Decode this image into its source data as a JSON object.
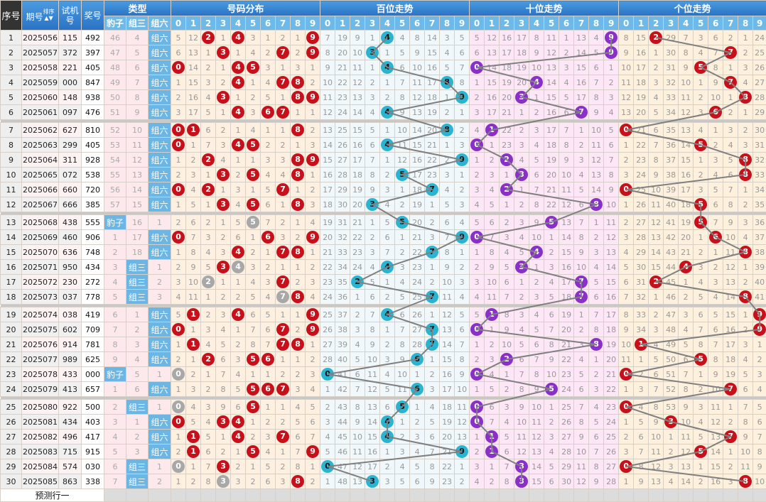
{
  "headers": {
    "seq": "序号",
    "issue": "期号",
    "sort_label": "排序",
    "trial": "试机号",
    "draw": "奖号",
    "type": "类型",
    "type_cols": [
      "豹子",
      "组三",
      "组六"
    ],
    "dist": "号码分布",
    "hundreds": "百位走势",
    "tens": "十位走势",
    "units": "个位走势",
    "digits": [
      "0",
      "1",
      "2",
      "3",
      "4",
      "5",
      "6",
      "7",
      "8",
      "9"
    ]
  },
  "colors": {
    "dist_ball": "#c8101a",
    "repeat_ball": "#a8a8a8",
    "hundreds_ball": "#2ab4d2",
    "tens_ball": "#8a2fc8",
    "units_ball": "#c8101a",
    "header": "#2a72c4"
  },
  "first_row_miss": {
    "type": [
      46,
      4,
      0
    ],
    "dist": [
      5,
      12,
      0,
      1,
      0,
      3,
      1,
      2,
      1,
      0
    ],
    "hundreds": [
      7,
      19,
      9,
      1,
      0,
      4,
      8,
      14,
      3,
      5
    ],
    "tens": [
      5,
      12,
      16,
      17,
      8,
      11,
      1,
      13,
      4,
      0
    ],
    "units": [
      8,
      15,
      0,
      29,
      7,
      3,
      6,
      2,
      1,
      24
    ]
  },
  "rows": [
    {
      "seq": "1",
      "issue": "2025056",
      "trial": "115",
      "draw": "492"
    },
    {
      "seq": "2",
      "issue": "2025057",
      "trial": "372",
      "draw": "397"
    },
    {
      "seq": "3",
      "issue": "2025058",
      "trial": "221",
      "draw": "405"
    },
    {
      "seq": "4",
      "issue": "2025059",
      "trial": "000",
      "draw": "847"
    },
    {
      "seq": "5",
      "issue": "2025060",
      "trial": "148",
      "draw": "938"
    },
    {
      "seq": "6",
      "issue": "2025061",
      "trial": "097",
      "draw": "476"
    },
    {
      "seq": "7",
      "issue": "2025062",
      "trial": "627",
      "draw": "810"
    },
    {
      "seq": "8",
      "issue": "2025063",
      "trial": "299",
      "draw": "405"
    },
    {
      "seq": "9",
      "issue": "2025064",
      "trial": "311",
      "draw": "928"
    },
    {
      "seq": "10",
      "issue": "2025065",
      "trial": "072",
      "draw": "538"
    },
    {
      "seq": "11",
      "issue": "2025066",
      "trial": "660",
      "draw": "720"
    },
    {
      "seq": "12",
      "issue": "2025067",
      "trial": "666",
      "draw": "385"
    },
    {
      "seq": "13",
      "issue": "2025068",
      "trial": "438",
      "draw": "555"
    },
    {
      "seq": "14",
      "issue": "2025069",
      "trial": "460",
      "draw": "906"
    },
    {
      "seq": "15",
      "issue": "2025070",
      "trial": "636",
      "draw": "748"
    },
    {
      "seq": "16",
      "issue": "2025071",
      "trial": "950",
      "draw": "434"
    },
    {
      "seq": "17",
      "issue": "2025072",
      "trial": "230",
      "draw": "272"
    },
    {
      "seq": "18",
      "issue": "2025073",
      "trial": "037",
      "draw": "778"
    },
    {
      "seq": "19",
      "issue": "2025074",
      "trial": "038",
      "draw": "419"
    },
    {
      "seq": "20",
      "issue": "2025075",
      "trial": "602",
      "draw": "709"
    },
    {
      "seq": "21",
      "issue": "2025076",
      "trial": "914",
      "draw": "781"
    },
    {
      "seq": "22",
      "issue": "2025077",
      "trial": "989",
      "draw": "625"
    },
    {
      "seq": "23",
      "issue": "2025078",
      "trial": "433",
      "draw": "000"
    },
    {
      "seq": "24",
      "issue": "2025079",
      "trial": "413",
      "draw": "657"
    },
    {
      "seq": "25",
      "issue": "2025080",
      "trial": "922",
      "draw": "500"
    },
    {
      "seq": "26",
      "issue": "2025081",
      "trial": "434",
      "draw": "403"
    },
    {
      "seq": "27",
      "issue": "2025082",
      "trial": "496",
      "draw": "417"
    },
    {
      "seq": "28",
      "issue": "2025083",
      "trial": "715",
      "draw": "915"
    },
    {
      "seq": "29",
      "issue": "2025084",
      "trial": "574",
      "draw": "030"
    },
    {
      "seq": "30",
      "issue": "2025085",
      "trial": "863",
      "draw": "338"
    }
  ],
  "predict_label": "预测行一"
}
